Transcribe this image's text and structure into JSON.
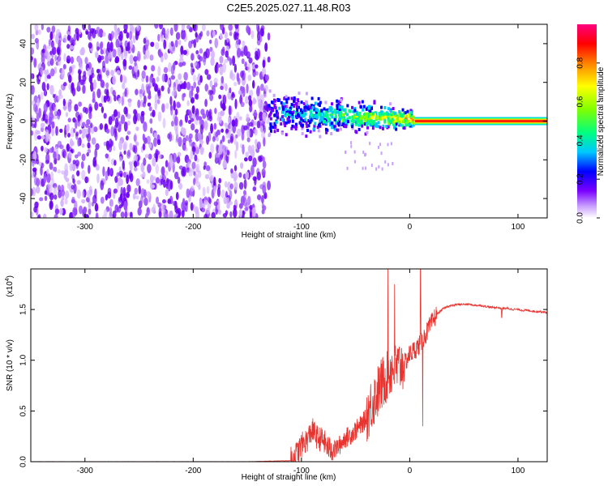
{
  "page": {
    "title": "C2E5.2025.027.11.48.R03"
  },
  "chart_data": [
    {
      "type": "heatmap",
      "title": "C2E5.2025.027.11.48.R03",
      "xlabel": "Height of straight line (km)",
      "ylabel": "Frequency (Hz)",
      "xlim": [
        -350,
        127
      ],
      "ylim": [
        -50,
        50
      ],
      "xticks": [
        -300,
        -200,
        -100,
        0,
        100
      ],
      "yticks": [
        -40,
        -20,
        0,
        20,
        40
      ],
      "x_tick_labels": [
        "-300",
        "-200",
        "-100",
        "0",
        "100"
      ],
      "y_tick_labels": [
        "-40",
        "-20",
        "0",
        "20",
        "40"
      ],
      "grid": false,
      "colorbar": {
        "label": "Normalized spectral amplitude",
        "range": [
          0,
          1
        ],
        "ticks": [
          0.0,
          0.2,
          0.4,
          0.6,
          0.8
        ],
        "tick_labels": [
          "0.0",
          "0.2",
          "0.4",
          "0.6",
          "0.8"
        ],
        "colors": [
          "#ffffff",
          "#c9a0ff",
          "#7a00ff",
          "#0000ff",
          "#00c8ff",
          "#00ff80",
          "#80ff00",
          "#ffff00",
          "#ff8000",
          "#ff0000",
          "#ff0080"
        ]
      },
      "regions": [
        {
          "name": "noise",
          "x_range": [
            -350,
            -130
          ],
          "freq_range": [
            -50,
            50
          ],
          "amplitude": 0.15
        },
        {
          "name": "transition",
          "x_range": [
            -130,
            5
          ],
          "freq_center": 3,
          "freq_spread": 8,
          "amplitude": 0.3
        },
        {
          "name": "signal",
          "x_range": [
            5,
            127
          ],
          "freq_center": 0,
          "amplitude": 0.95
        }
      ]
    },
    {
      "type": "line",
      "xlabel": "Height of straight line (km)",
      "ylabel": "SNR (10 * v/v)",
      "y_multiplier": "(x10",
      "y_multiplier_exp": "4",
      "xlim": [
        -350,
        127
      ],
      "ylim": [
        0,
        1.9
      ],
      "xticks": [
        -300,
        -200,
        -100,
        0,
        100
      ],
      "yticks": [
        0.0,
        0.5,
        1.0,
        1.5
      ],
      "x_tick_labels": [
        "-300",
        "-200",
        "-100",
        "0",
        "100"
      ],
      "y_tick_labels": [
        "0.0",
        "0.5",
        "1.0",
        "1.5"
      ],
      "grid": false,
      "series": [
        {
          "color": "#e8332e",
          "x": [
            -350,
            -300,
            -250,
            -200,
            -150,
            -110,
            -105,
            -100,
            -95,
            -90,
            -85,
            -80,
            -75,
            -70,
            -65,
            -60,
            -55,
            -50,
            -45,
            -40,
            -35,
            -30,
            -25,
            -20,
            -15,
            -10,
            -5,
            0,
            5,
            10,
            15,
            20,
            25,
            30,
            35,
            40,
            45,
            50,
            55,
            60,
            65,
            70,
            75,
            80,
            85,
            90,
            95,
            100,
            105,
            110,
            115,
            120,
            127
          ],
          "y": [
            0.0,
            0.0,
            0.0,
            0.0,
            0.0,
            0.01,
            0.06,
            0.15,
            0.2,
            0.3,
            0.22,
            0.2,
            0.12,
            0.1,
            0.15,
            0.22,
            0.25,
            0.3,
            0.35,
            0.42,
            0.55,
            0.65,
            0.75,
            0.85,
            0.9,
            0.9,
            0.95,
            1.05,
            1.1,
            1.15,
            1.25,
            1.35,
            1.45,
            1.5,
            1.53,
            1.54,
            1.55,
            1.55,
            1.55,
            1.54,
            1.54,
            1.53,
            1.52,
            1.52,
            1.51,
            1.51,
            1.5,
            1.5,
            1.49,
            1.49,
            1.48,
            1.48,
            1.47
          ],
          "noise_envelope": [
            {
              "x_range": [
                -110,
                -70
              ],
              "amplitude": 0.25
            },
            {
              "x_range": [
                -70,
                -40
              ],
              "amplitude": 0.2
            },
            {
              "x_range": [
                -40,
                -5
              ],
              "amplitude": 0.55
            },
            {
              "x_range": [
                -5,
                25
              ],
              "amplitude": 0.2
            },
            {
              "x_range": [
                25,
                127
              ],
              "amplitude": 0.02
            }
          ],
          "spikes": [
            {
              "x": -20,
              "y": 1.9
            },
            {
              "x": -14,
              "y": 1.75
            },
            {
              "x": 10,
              "y": 1.9
            },
            {
              "x": 12,
              "y": 0.35
            },
            {
              "x": 85,
              "y": 1.42
            }
          ]
        }
      ]
    }
  ]
}
